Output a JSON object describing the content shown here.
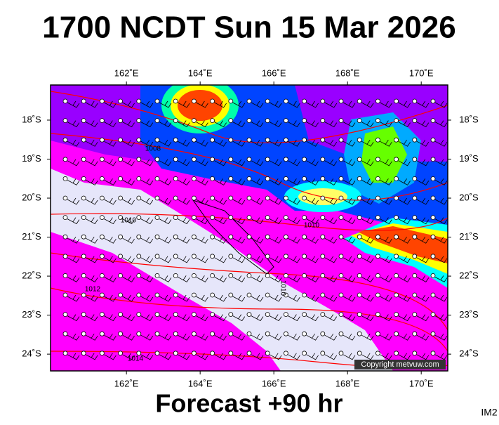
{
  "header": {
    "title": "1700 NCDT Sun 15 Mar 2026"
  },
  "map": {
    "lon_range": [
      159.94,
      170.72
    ],
    "lat_range": [
      17.1,
      24.43
    ],
    "lon_ticks": [
      {
        "value": 162,
        "label": "162˚E"
      },
      {
        "value": 164,
        "label": "164˚E"
      },
      {
        "value": 166,
        "label": "166˚E"
      },
      {
        "value": 168,
        "label": "168˚E"
      },
      {
        "value": 170,
        "label": "170˚E"
      }
    ],
    "lat_ticks": [
      {
        "value": 18,
        "label": "18˚S"
      },
      {
        "value": 19,
        "label": "19˚S"
      },
      {
        "value": 20,
        "label": "20˚S"
      },
      {
        "value": 21,
        "label": "21˚S"
      },
      {
        "value": 22,
        "label": "22˚S"
      },
      {
        "value": 23,
        "label": "23˚S"
      },
      {
        "value": 24,
        "label": "24˚S"
      }
    ],
    "isobar_labels": [
      "1008",
      "1010",
      "1010",
      "1010",
      "1012",
      "1014"
    ],
    "copyright": "Copyright metvuw.com"
  },
  "footer": {
    "caption": "Forecast +90 hr",
    "code": "IM2"
  }
}
